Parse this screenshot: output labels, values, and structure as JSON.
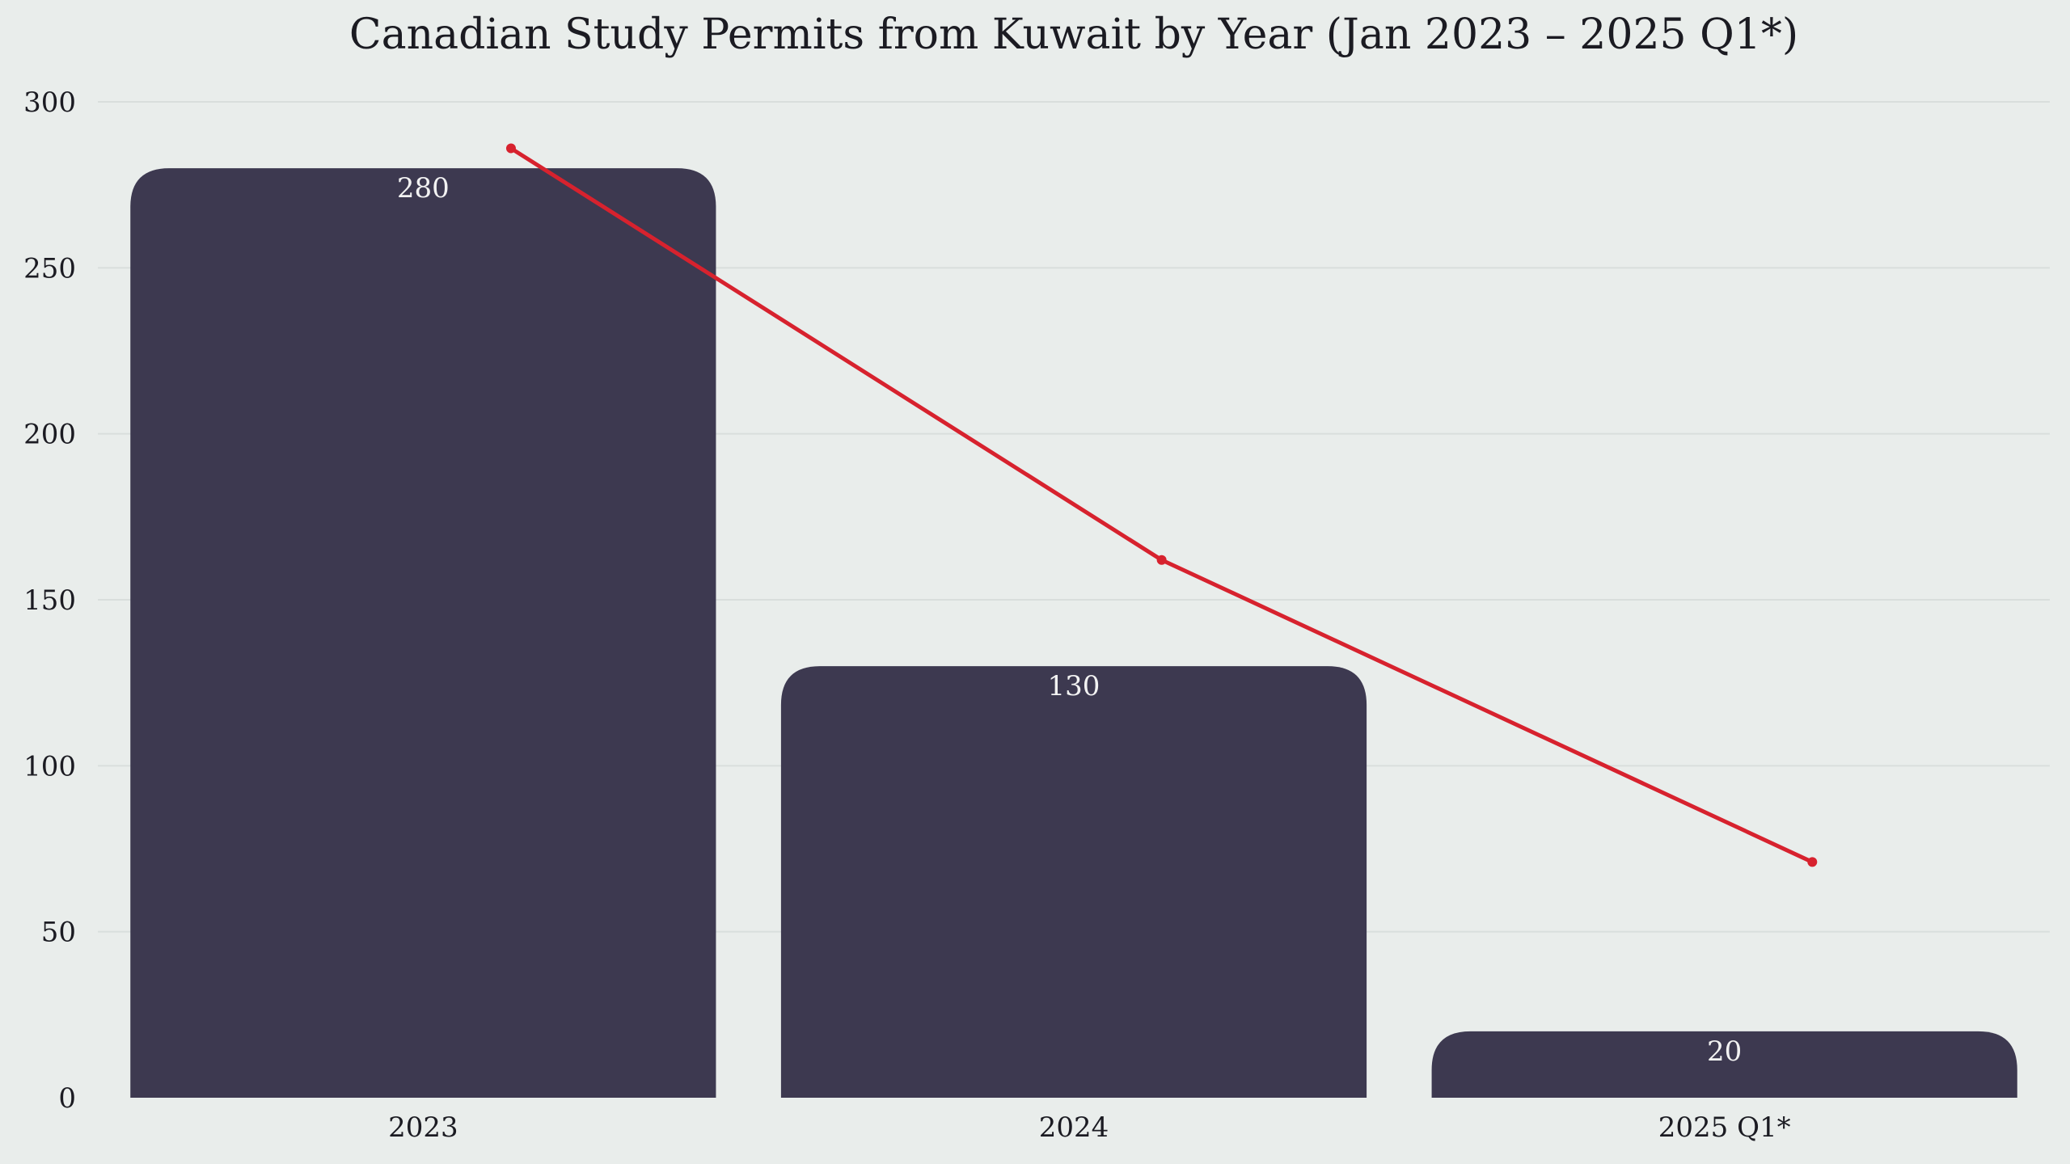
{
  "chart_data": {
    "type": "bar",
    "title": "Canadian Study Permits from Kuwait by Year (Jan 2023 – 2025 Q1*)",
    "categories": [
      "2023",
      "2024",
      "2025 Q1*"
    ],
    "values": [
      280,
      130,
      20
    ],
    "data_labels": [
      "280",
      "130",
      "20"
    ],
    "trend_line": {
      "values": [
        286,
        162,
        71
      ]
    },
    "ylim": [
      0,
      300
    ],
    "yticks": [
      0,
      50,
      100,
      150,
      200,
      250,
      300
    ],
    "xlabel": "",
    "ylabel": "",
    "grid": true,
    "legend": "none",
    "colors": {
      "background": "#e9edeb",
      "bar": "#3d3950",
      "trend": "#d7222e",
      "grid": "#d9dedc",
      "text": "#1b1b22",
      "bar_label": "#f2f2f2"
    }
  }
}
